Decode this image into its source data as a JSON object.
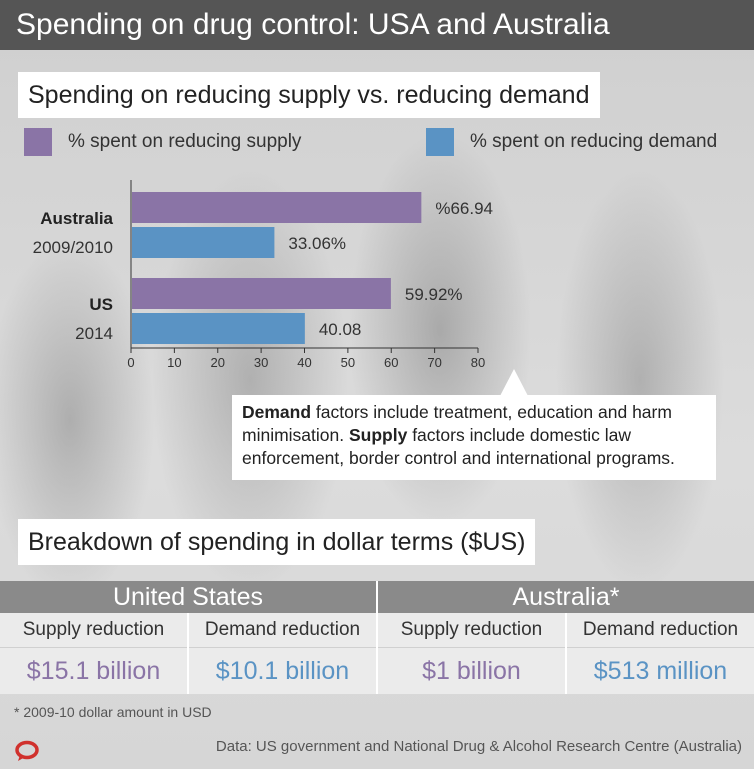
{
  "header": {
    "title": "Spending on drug control: USA and Australia"
  },
  "chart_data": {
    "type": "bar",
    "orientation": "horizontal",
    "title": "Spending on reducing supply vs. reducing demand",
    "categories": [
      {
        "name": "Australia",
        "period": "2009/2010"
      },
      {
        "name": "US",
        "period": "2014"
      }
    ],
    "series": [
      {
        "name": "% spent on reducing supply",
        "color": "#8a74a6",
        "values": [
          66.94,
          59.92
        ],
        "labels": [
          "%66.94",
          "59.92%"
        ]
      },
      {
        "name": "% spent on reducing demand",
        "color": "#5a93c4",
        "values": [
          33.06,
          40.08
        ],
        "labels": [
          "33.06%",
          "40.08"
        ]
      }
    ],
    "xlim": [
      0,
      80
    ],
    "xticks": [
      "0",
      "10",
      "20",
      "30",
      "40",
      "50",
      "60",
      "70",
      "80"
    ],
    "legend_position": "top",
    "grid": false
  },
  "note": {
    "demand_term": "Demand",
    "demand_text": " factors include treatment, education and harm minimisation. ",
    "supply_term": "Supply",
    "supply_text": " factors include domestic law enforcement, border control and international programs."
  },
  "breakdown": {
    "title": "Breakdown of spending in dollar terms ($US)",
    "countries": [
      "United States",
      "Australia*"
    ],
    "columns": [
      {
        "label": "Supply reduction",
        "value": "$15.1 billion"
      },
      {
        "label": "Demand reduction",
        "value": "$10.1 billion"
      },
      {
        "label": "Supply reduction",
        "value": "$1 billion"
      },
      {
        "label": "Demand reduction",
        "value": "$513 million"
      }
    ]
  },
  "footnote": "* 2009-10 dollar amount in USD",
  "source": "Data: US government and National Drug & Alcohol Research Centre (Australia)",
  "colors": {
    "header": "#555555",
    "supply": "#8a74a6",
    "demand": "#5a93c4",
    "table_header": "#8a8a8a",
    "logo": "#d0312d"
  }
}
